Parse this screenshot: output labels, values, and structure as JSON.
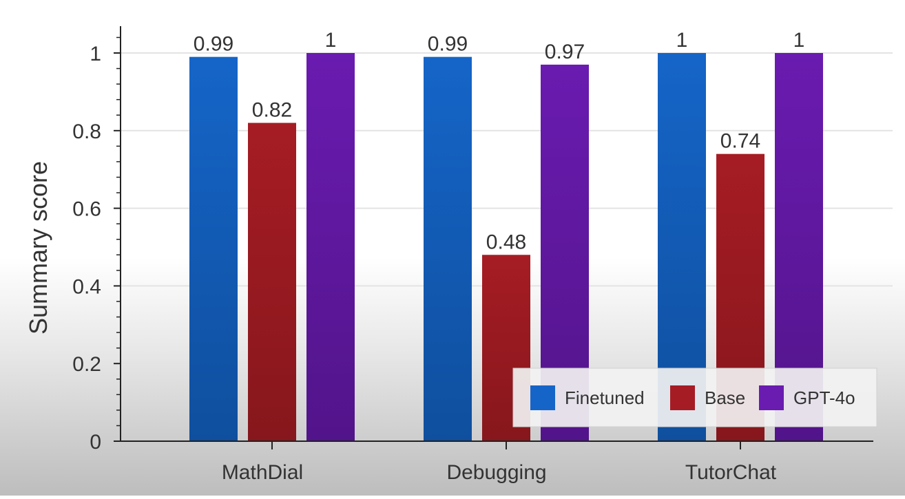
{
  "chart_data": {
    "type": "bar",
    "title": "",
    "xlabel": "",
    "ylabel": "Summary score",
    "ylim": [
      0,
      1.05
    ],
    "yticks": [
      0,
      0.2,
      0.4,
      0.6,
      0.8,
      1
    ],
    "ytick_labels": [
      "0",
      "0.2",
      "0.4",
      "0.6",
      "0.8",
      "1"
    ],
    "grid": true,
    "legend_position": "bottom-right",
    "categories": [
      "MathDial",
      "Debugging",
      "TutorChat"
    ],
    "series": [
      {
        "name": "Finetuned",
        "color": "#1565c8",
        "values": [
          0.99,
          0.99,
          1
        ],
        "labels": [
          "0.99",
          "0.99",
          "1"
        ]
      },
      {
        "name": "Base",
        "color": "#a61c24",
        "values": [
          0.82,
          0.48,
          0.74
        ],
        "labels": [
          "0.82",
          "0.48",
          "0.74"
        ]
      },
      {
        "name": "GPT-4o",
        "color": "#6a1bb0",
        "values": [
          1,
          0.97,
          1
        ],
        "labels": [
          "1",
          "0.97",
          "1"
        ]
      }
    ]
  }
}
